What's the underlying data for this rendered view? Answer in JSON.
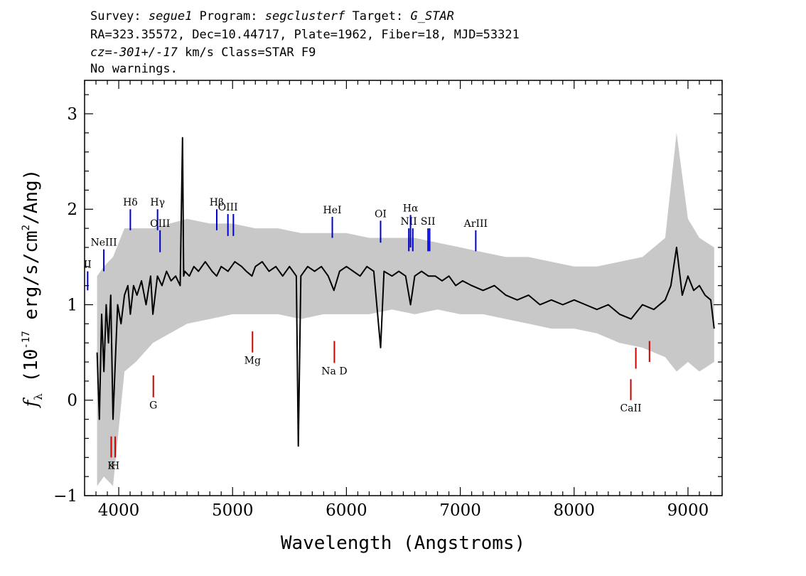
{
  "header": {
    "line1": {
      "survey_label": "Survey:",
      "survey": "segue1",
      "program_label": "Program:",
      "program": "segclusterf",
      "target_label": "Target:",
      "target": "G_STAR"
    },
    "line2": "RA=323.35572, Dec=10.44717, Plate=1962, Fiber=18, MJD=53321",
    "line3": {
      "cz": "cz=-301+/-17",
      "rest": "km/s Class=STAR F9"
    },
    "line4": "No warnings."
  },
  "chart_data": {
    "type": "line",
    "xlabel": "Wavelength (Angstroms)",
    "ylabel": {
      "f": "f",
      "sub": "λ",
      "pre": "(10",
      "exp1": "-17",
      "mid": "erg/s/cm",
      "exp2": "2",
      "post": "/Ang)"
    },
    "xlim": [
      3700,
      9300
    ],
    "ylim": [
      -1.0,
      3.35
    ],
    "xticks": [
      4000,
      5000,
      6000,
      7000,
      8000,
      9000
    ],
    "xtick_labels": [
      "4000",
      "5000",
      "6000",
      "7000",
      "8000",
      "9000"
    ],
    "yticks": [
      -1,
      0,
      1,
      2,
      3
    ],
    "ytick_labels": [
      "−1",
      "0",
      "1",
      "2",
      "3"
    ],
    "series": [
      {
        "role": "flux",
        "color": "#000000",
        "x": [
          3810,
          3830,
          3850,
          3870,
          3890,
          3910,
          3930,
          3950,
          3970,
          3990,
          4020,
          4050,
          4080,
          4102,
          4130,
          4160,
          4200,
          4240,
          4280,
          4300,
          4340,
          4380,
          4420,
          4460,
          4500,
          4540,
          4560,
          4570,
          4580,
          4620,
          4660,
          4700,
          4760,
          4820,
          4860,
          4900,
          4960,
          5020,
          5080,
          5120,
          5170,
          5200,
          5260,
          5320,
          5380,
          5440,
          5500,
          5560,
          5577,
          5600,
          5660,
          5720,
          5780,
          5840,
          5890,
          5940,
          6000,
          6060,
          6120,
          6180,
          6240,
          6300,
          6330,
          6400,
          6460,
          6520,
          6563,
          6600,
          6660,
          6720,
          6780,
          6840,
          6900,
          6960,
          7020,
          7100,
          7200,
          7300,
          7400,
          7500,
          7600,
          7700,
          7800,
          7900,
          8000,
          8100,
          8200,
          8300,
          8400,
          8500,
          8600,
          8700,
          8800,
          8850,
          8900,
          8950,
          9000,
          9050,
          9100,
          9150,
          9200,
          9230
        ],
        "y": [
          0.5,
          -0.2,
          0.9,
          0.3,
          1.0,
          0.6,
          1.1,
          -0.2,
          0.4,
          1.0,
          0.8,
          1.1,
          1.2,
          0.9,
          1.2,
          1.1,
          1.25,
          1.0,
          1.3,
          0.9,
          1.3,
          1.2,
          1.35,
          1.25,
          1.3,
          1.2,
          2.75,
          1.3,
          1.35,
          1.3,
          1.4,
          1.35,
          1.45,
          1.35,
          1.3,
          1.4,
          1.35,
          1.45,
          1.4,
          1.35,
          1.3,
          1.4,
          1.45,
          1.35,
          1.4,
          1.3,
          1.4,
          1.3,
          -0.48,
          1.3,
          1.4,
          1.35,
          1.4,
          1.3,
          1.15,
          1.35,
          1.4,
          1.35,
          1.3,
          1.4,
          1.35,
          0.55,
          1.35,
          1.3,
          1.35,
          1.3,
          1.0,
          1.3,
          1.35,
          1.3,
          1.3,
          1.25,
          1.3,
          1.2,
          1.25,
          1.2,
          1.15,
          1.2,
          1.1,
          1.05,
          1.1,
          1.0,
          1.05,
          1.0,
          1.05,
          1.0,
          0.95,
          1.0,
          0.9,
          0.85,
          1.0,
          0.95,
          1.05,
          1.2,
          1.6,
          1.1,
          1.3,
          1.15,
          1.2,
          1.1,
          1.05,
          0.75
        ]
      },
      {
        "role": "error",
        "color": "#c8c8c8",
        "x": [
          3810,
          3870,
          3950,
          4050,
          4150,
          4300,
          4450,
          4600,
          4800,
          5000,
          5200,
          5400,
          5600,
          5800,
          6000,
          6200,
          6400,
          6600,
          6800,
          7000,
          7200,
          7400,
          7600,
          7800,
          8000,
          8200,
          8400,
          8600,
          8800,
          8900,
          9000,
          9100,
          9230
        ],
        "y_low": [
          -0.9,
          -0.8,
          -0.9,
          0.3,
          0.4,
          0.6,
          0.7,
          0.8,
          0.85,
          0.9,
          0.9,
          0.9,
          0.85,
          0.9,
          0.9,
          0.9,
          0.95,
          0.9,
          0.95,
          0.9,
          0.9,
          0.85,
          0.8,
          0.75,
          0.75,
          0.7,
          0.6,
          0.55,
          0.45,
          0.3,
          0.4,
          0.3,
          0.4
        ],
        "y_high": [
          1.3,
          1.4,
          1.5,
          1.8,
          1.8,
          1.8,
          1.85,
          1.9,
          1.85,
          1.85,
          1.8,
          1.8,
          1.75,
          1.75,
          1.75,
          1.7,
          1.7,
          1.7,
          1.65,
          1.6,
          1.55,
          1.5,
          1.5,
          1.45,
          1.4,
          1.4,
          1.45,
          1.5,
          1.7,
          2.8,
          1.9,
          1.7,
          1.6
        ]
      }
    ],
    "emission_lines": [
      {
        "label": "II",
        "x": 3727,
        "y_top": 1.35,
        "y_bottom": 1.15
      },
      {
        "label": "NeIII",
        "x": 3869,
        "y_top": 1.58,
        "y_bottom": 1.35
      },
      {
        "label": "Hδ",
        "x": 4102,
        "y_top": 2.0,
        "y_bottom": 1.78
      },
      {
        "label": "Hγ",
        "x": 4341,
        "y_top": 2.0,
        "y_bottom": 1.78
      },
      {
        "label": "OIII",
        "x": 4363,
        "y_top": 1.78,
        "y_bottom": 1.55
      },
      {
        "label": "Hβ",
        "x": 4861,
        "y_top": 2.0,
        "y_bottom": 1.78
      },
      {
        "label": "OIII",
        "x": 4959,
        "y_top": 1.95,
        "y_bottom": 1.72
      },
      {
        "label": "",
        "x": 5007,
        "y_top": 1.95,
        "y_bottom": 1.72
      },
      {
        "label": "HeI",
        "x": 5876,
        "y_top": 1.92,
        "y_bottom": 1.7
      },
      {
        "label": "OI",
        "x": 6300,
        "y_top": 1.88,
        "y_bottom": 1.65
      },
      {
        "label": "NII",
        "x": 6548,
        "y_top": 1.8,
        "y_bottom": 1.56
      },
      {
        "label": "Hα",
        "x": 6563,
        "y_top": 1.94,
        "y_bottom": 1.6
      },
      {
        "label": "",
        "x": 6583,
        "y_top": 1.8,
        "y_bottom": 1.56
      },
      {
        "label": "SII",
        "x": 6717,
        "y_top": 1.8,
        "y_bottom": 1.56
      },
      {
        "label": "",
        "x": 6731,
        "y_top": 1.8,
        "y_bottom": 1.56
      },
      {
        "label": "ArIII",
        "x": 7136,
        "y_top": 1.78,
        "y_bottom": 1.56
      }
    ],
    "absorption_lines": [
      {
        "label": "K",
        "x": 3934,
        "y_top": -0.38,
        "y_bottom": -0.6
      },
      {
        "label": "H",
        "x": 3969,
        "y_top": -0.38,
        "y_bottom": -0.6
      },
      {
        "label": "G",
        "x": 4304,
        "y_top": 0.26,
        "y_bottom": 0.03
      },
      {
        "label": "Mg",
        "x": 5175,
        "y_top": 0.72,
        "y_bottom": 0.5
      },
      {
        "label": "Na D",
        "x": 5894,
        "y_top": 0.62,
        "y_bottom": 0.39
      },
      {
        "label": "CaII",
        "x": 8498,
        "y_top": 0.22,
        "y_bottom": 0.0
      },
      {
        "label": "",
        "x": 8542,
        "y_top": 0.55,
        "y_bottom": 0.33
      },
      {
        "label": "",
        "x": 8662,
        "y_top": 0.62,
        "y_bottom": 0.4
      }
    ],
    "colors": {
      "emission": "#0000cc",
      "absorption": "#cc0000",
      "flux": "#000000",
      "error": "#c8c8c8"
    }
  }
}
